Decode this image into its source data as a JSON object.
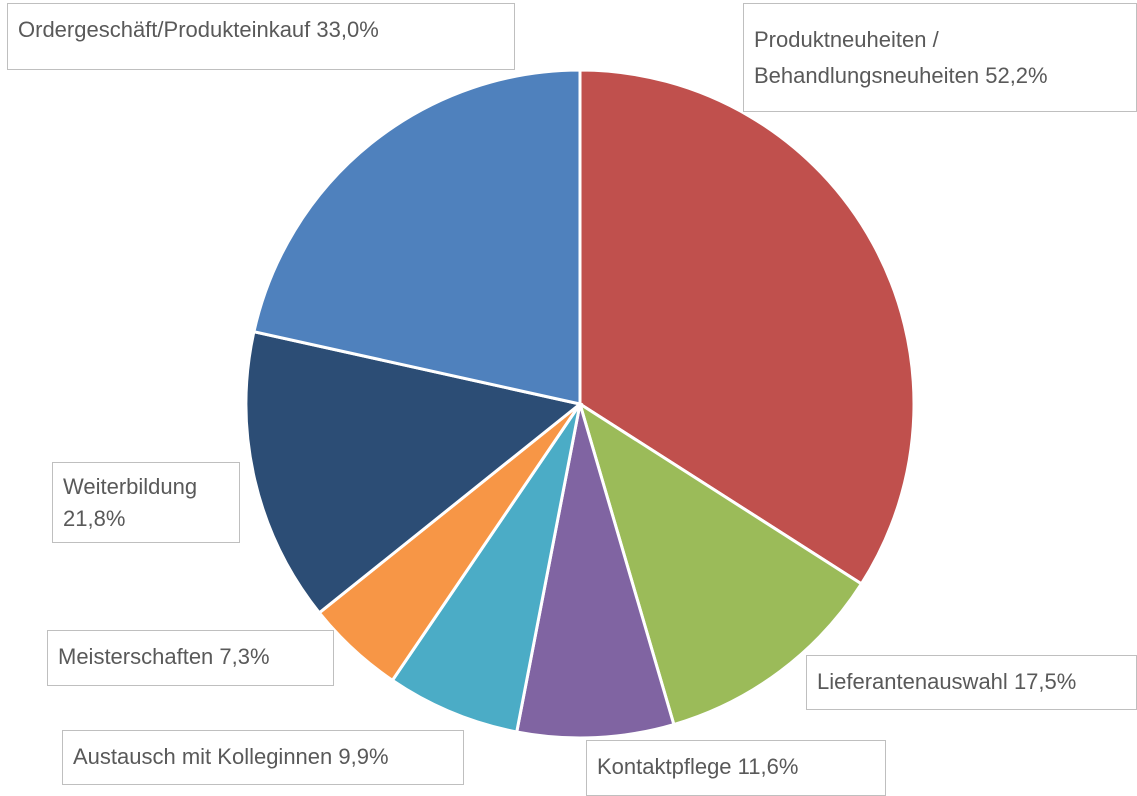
{
  "chart_data": {
    "type": "pie",
    "categories": [
      "Produktneuheiten / Behandlungsneuheiten",
      "Lieferantenauswahl",
      "Kontaktpflege",
      "Austausch mit Kolleginnen",
      "Meisterschaften",
      "Weiterbildung",
      "Ordergeschäft/Produkteinkauf"
    ],
    "values": [
      52.2,
      17.5,
      11.6,
      9.9,
      7.3,
      21.8,
      33.0
    ],
    "value_labels": [
      "52,2%",
      "17,5%",
      "11,6%",
      "9,9%",
      "7,3%",
      "21,8%",
      "33,0%"
    ],
    "colors": [
      "#c0504d",
      "#9bbb59",
      "#8064a2",
      "#4bacc6",
      "#f79646",
      "#2c4d75",
      "#4f81bd"
    ]
  }
}
